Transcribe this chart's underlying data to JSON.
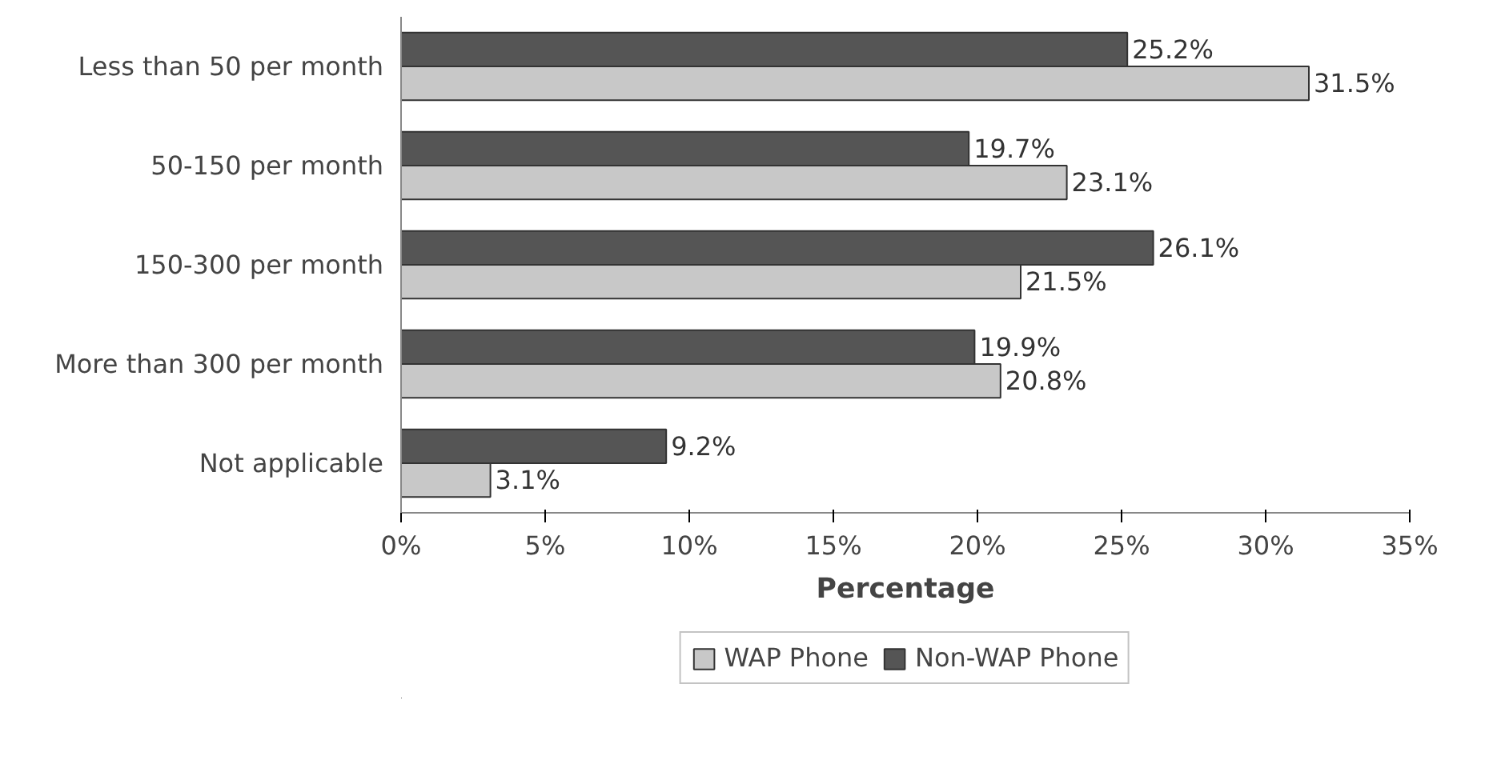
{
  "chart_data": {
    "type": "bar",
    "orientation": "horizontal",
    "xlabel": "Percentage",
    "categories": [
      "Less than 50 per month",
      "50-150 per month",
      "150-300 per month",
      "More than 300 per month",
      "Not applicable"
    ],
    "series": [
      {
        "name": "WAP Phone",
        "color": "#c8c8c8",
        "values": [
          31.5,
          23.1,
          21.5,
          20.8,
          3.1
        ],
        "value_labels": [
          "31.5%",
          "23.1%",
          "21.5%",
          "20.8%",
          "3.1%"
        ]
      },
      {
        "name": "Non-WAP Phone",
        "color": "#555555",
        "values": [
          25.2,
          19.7,
          26.1,
          19.9,
          9.2
        ],
        "value_labels": [
          "25.2%",
          "19.7%",
          "26.1%",
          "19.9%",
          "9.2%"
        ]
      }
    ],
    "xlim": [
      0,
      35
    ],
    "xticks": [
      {
        "value": 0,
        "label": "0%"
      },
      {
        "value": 5,
        "label": "5%"
      },
      {
        "value": 10,
        "label": "10%"
      },
      {
        "value": 15,
        "label": "15%"
      },
      {
        "value": 20,
        "label": "20%"
      },
      {
        "value": 25,
        "label": "25%"
      },
      {
        "value": 30,
        "label": "30%"
      },
      {
        "value": 35,
        "label": "35%"
      }
    ],
    "grid": false,
    "legend": "bottom"
  }
}
